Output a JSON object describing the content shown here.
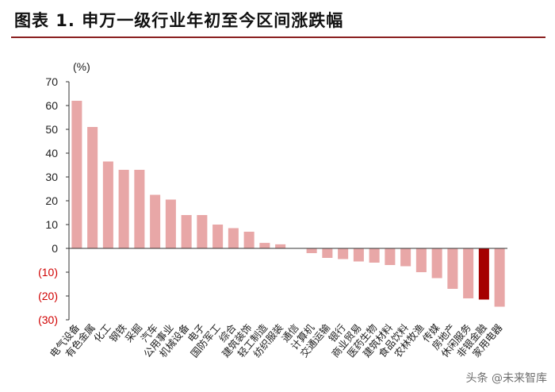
{
  "header": {
    "title": "图表 1. 申万一级行业年初至今区间涨跌幅"
  },
  "chart_data": {
    "type": "bar",
    "title": "",
    "xlabel": "",
    "ylabel": "(%)",
    "ylim": [
      -30,
      70
    ],
    "yticks": [
      70,
      60,
      50,
      40,
      30,
      20,
      10,
      0,
      -10,
      -20,
      -30
    ],
    "ytick_labels": [
      "70",
      "60",
      "50",
      "40",
      "30",
      "20",
      "10",
      "0",
      "(10)",
      "(20)",
      "(30)"
    ],
    "grid": false,
    "legend": "none",
    "colors": {
      "bar": "#e8a7a7",
      "highlight": "#a50000",
      "negative_tick": "#d00000",
      "axis": "#333333"
    },
    "highlight_index": 26,
    "categories": [
      "电气设备",
      "有色金属",
      "化工",
      "钢铁",
      "采掘",
      "汽车",
      "公用事业",
      "机械设备",
      "电子",
      "国防军工",
      "综合",
      "建筑装饰",
      "轻工制造",
      "纺织服装",
      "通信",
      "计算机",
      "交通运输",
      "银行",
      "商业贸易",
      "医药生物",
      "建筑材料",
      "食品饮料",
      "农林牧渔",
      "传媒",
      "房地产",
      "休闲服务",
      "非银金融",
      "家用电器"
    ],
    "values": [
      62,
      51,
      36.5,
      33,
      33,
      22.5,
      20.5,
      14,
      14,
      10,
      8.5,
      7,
      2.3,
      1.7,
      0,
      -2,
      -4,
      -4.5,
      -5.5,
      -6,
      -7,
      -7.5,
      -10,
      -12.5,
      -17,
      -21,
      -21.5,
      -24.5
    ]
  },
  "watermark": {
    "text": "头条 @未来智库"
  }
}
